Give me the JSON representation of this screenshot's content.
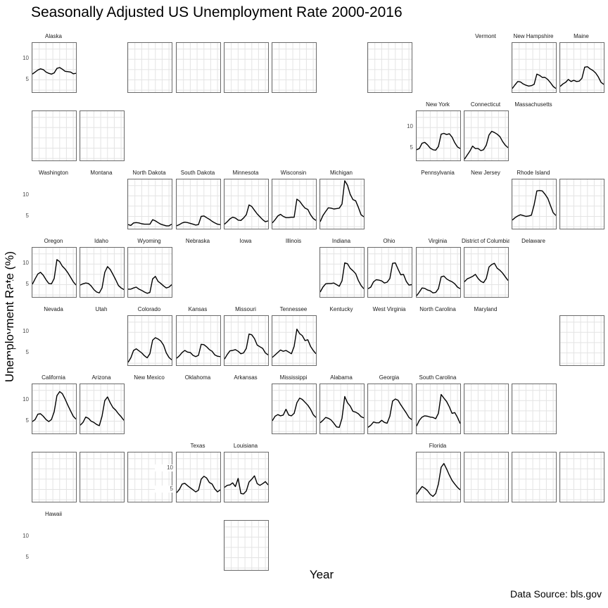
{
  "title": "Seasonally Adjusted US Unemployment Rate 2000-2016",
  "axes": {
    "y_title": "Unemployment Rate (%)",
    "x_title": "Year"
  },
  "footer": {
    "source": "Data Source: bls.gov"
  },
  "colors": {
    "line": "#000000",
    "grid": "#e4e4e4",
    "panel_border": "#6a6a6a",
    "panel_bg": "#ffffff",
    "tick_label": "#4d4d4d",
    "strip_label": "#1a1a1a"
  },
  "chart_data": {
    "type": "line",
    "title": "Seasonally Adjusted US Unemployment Rate 2000-2016",
    "xlabel": "Year",
    "ylabel": "Unemployment Rate (%)",
    "x": [
      2000,
      2001,
      2002,
      2003,
      2004,
      2005,
      2006,
      2007,
      2008,
      2009,
      2010,
      2011,
      2012,
      2013,
      2014,
      2015,
      2016
    ],
    "x_range": [
      2000,
      2016
    ],
    "y_range": [
      2,
      14
    ],
    "x_gridlines": [
      2000,
      2002.5,
      2005,
      2007.5,
      2010,
      2012.5,
      2015
    ],
    "y_gridlines": [
      2.5,
      5,
      7.5,
      10,
      12.5
    ],
    "y_ticks": [
      {
        "label": "10",
        "value": 10
      },
      {
        "label": "5",
        "value": 5
      }
    ],
    "legend": "none",
    "grid_layout": {
      "rows": 8,
      "cols": 12
    },
    "facets": [
      {
        "state": "Alaska",
        "row": 1,
        "col": 1,
        "cell": "data",
        "y_axis": true,
        "values": [
          6.4,
          6.9,
          7.4,
          7.7,
          7.5,
          6.9,
          6.6,
          6.4,
          6.7,
          7.8,
          8.0,
          7.6,
          7.1,
          7.0,
          6.9,
          6.5,
          6.6
        ]
      },
      {
        "row": 1,
        "col": 3,
        "cell": "empty"
      },
      {
        "row": 1,
        "col": 4,
        "cell": "empty"
      },
      {
        "row": 1,
        "col": 5,
        "cell": "empty"
      },
      {
        "row": 1,
        "col": 6,
        "cell": "empty"
      },
      {
        "row": 1,
        "col": 8,
        "cell": "empty"
      },
      {
        "state": "Vermont",
        "row": 1,
        "col": 10,
        "cell": "label"
      },
      {
        "state": "New Hampshire",
        "row": 1,
        "col": 11,
        "cell": "data",
        "values": [
          2.9,
          3.8,
          4.6,
          4.5,
          4.0,
          3.7,
          3.5,
          3.6,
          3.9,
          6.4,
          6.1,
          5.6,
          5.6,
          5.1,
          4.3,
          3.4,
          2.9
        ]
      },
      {
        "state": "Maine",
        "row": 1,
        "col": 12,
        "cell": "data",
        "values": [
          3.4,
          4.0,
          4.4,
          5.1,
          4.6,
          4.9,
          4.6,
          4.7,
          5.4,
          8.1,
          8.2,
          7.7,
          7.3,
          6.7,
          5.7,
          4.4,
          3.9
        ]
      },
      {
        "row": 2,
        "col": 1,
        "cell": "empty"
      },
      {
        "row": 2,
        "col": 2,
        "cell": "empty"
      },
      {
        "state": "New York",
        "row": 2,
        "col": 9,
        "cell": "data",
        "y_axis": true,
        "values": [
          4.6,
          4.9,
          6.2,
          6.4,
          5.8,
          5.0,
          4.6,
          4.5,
          5.4,
          8.4,
          8.6,
          8.3,
          8.5,
          7.7,
          6.3,
          5.3,
          4.9
        ]
      },
      {
        "state": "Connecticut",
        "row": 2,
        "col": 10,
        "cell": "data",
        "values": [
          2.3,
          3.3,
          4.3,
          5.5,
          4.9,
          4.9,
          4.4,
          4.6,
          5.7,
          8.2,
          9.1,
          8.8,
          8.4,
          7.8,
          6.6,
          5.7,
          5.1
        ]
      },
      {
        "state": "Massachusetts",
        "row": 2,
        "col": 11,
        "cell": "label"
      },
      {
        "state": "Washington",
        "row": 3,
        "col": 1,
        "cell": "label",
        "y_axis": true
      },
      {
        "state": "Montana",
        "row": 3,
        "col": 2,
        "cell": "label"
      },
      {
        "state": "North Dakota",
        "row": 3,
        "col": 3,
        "cell": "data",
        "values": [
          3.0,
          2.8,
          3.4,
          3.5,
          3.4,
          3.2,
          3.1,
          3.1,
          3.1,
          4.2,
          3.9,
          3.5,
          3.1,
          2.9,
          2.7,
          2.7,
          3.1
        ]
      },
      {
        "state": "South Dakota",
        "row": 3,
        "col": 4,
        "cell": "data",
        "values": [
          2.7,
          3.0,
          3.4,
          3.6,
          3.5,
          3.3,
          3.1,
          2.9,
          3.0,
          5.0,
          5.1,
          4.7,
          4.3,
          3.8,
          3.4,
          3.1,
          3.0
        ]
      },
      {
        "state": "Minnesota",
        "row": 3,
        "col": 5,
        "cell": "data",
        "values": [
          3.1,
          3.7,
          4.4,
          4.8,
          4.6,
          4.1,
          4.0,
          4.6,
          5.4,
          7.8,
          7.4,
          6.5,
          5.6,
          4.9,
          4.2,
          3.7,
          3.9
        ]
      },
      {
        "state": "Wisconsin",
        "row": 3,
        "col": 6,
        "cell": "data",
        "values": [
          3.4,
          4.2,
          5.1,
          5.5,
          5.0,
          4.7,
          4.7,
          4.8,
          4.8,
          9.2,
          8.7,
          7.8,
          7.0,
          6.7,
          5.4,
          4.5,
          4.0
        ]
      },
      {
        "state": "Michigan",
        "row": 3,
        "col": 7,
        "cell": "data",
        "values": [
          3.7,
          5.2,
          6.2,
          7.1,
          7.0,
          6.8,
          6.9,
          7.0,
          8.0,
          13.7,
          12.6,
          10.4,
          9.1,
          8.8,
          7.2,
          5.4,
          4.9
        ]
      },
      {
        "state": "Pennsylvania",
        "row": 3,
        "col": 9,
        "cell": "label"
      },
      {
        "state": "New Jersey",
        "row": 3,
        "col": 10,
        "cell": "label"
      },
      {
        "state": "Rhode Island",
        "row": 3,
        "col": 11,
        "cell": "data",
        "values": [
          4.1,
          4.7,
          5.1,
          5.4,
          5.2,
          5.0,
          5.1,
          5.3,
          7.8,
          11.2,
          11.3,
          11.2,
          10.4,
          9.4,
          7.6,
          5.9,
          5.2
        ]
      },
      {
        "row": 3,
        "col": 12,
        "cell": "empty"
      },
      {
        "state": "Oregon",
        "row": 4,
        "col": 1,
        "cell": "data",
        "y_axis": true,
        "values": [
          5.1,
          6.4,
          7.6,
          8.0,
          7.3,
          6.2,
          5.3,
          5.2,
          6.5,
          11.1,
          10.6,
          9.5,
          8.8,
          7.9,
          6.8,
          5.7,
          4.9
        ]
      },
      {
        "state": "Idaho",
        "row": 4,
        "col": 2,
        "cell": "data",
        "values": [
          4.9,
          5.2,
          5.4,
          5.3,
          4.7,
          3.8,
          3.2,
          3.0,
          4.2,
          8.0,
          9.4,
          8.7,
          7.5,
          6.2,
          4.8,
          4.2,
          3.8
        ]
      },
      {
        "state": "Wyoming",
        "row": 4,
        "col": 3,
        "cell": "data",
        "values": [
          3.9,
          3.9,
          4.2,
          4.4,
          3.9,
          3.6,
          3.2,
          2.9,
          3.1,
          6.4,
          7.0,
          5.8,
          5.3,
          4.7,
          4.2,
          4.4,
          5.0
        ]
      },
      {
        "state": "Nebraska",
        "row": 4,
        "col": 4,
        "cell": "label"
      },
      {
        "state": "Iowa",
        "row": 4,
        "col": 5,
        "cell": "label"
      },
      {
        "state": "Illinois",
        "row": 4,
        "col": 6,
        "cell": "label"
      },
      {
        "state": "Indiana",
        "row": 4,
        "col": 7,
        "cell": "data",
        "values": [
          3.2,
          4.4,
          5.2,
          5.3,
          5.3,
          5.4,
          5.0,
          4.6,
          5.9,
          10.3,
          10.1,
          9.0,
          8.4,
          7.7,
          6.0,
          4.8,
          4.0
        ]
      },
      {
        "state": "Ohio",
        "row": 4,
        "col": 8,
        "cell": "data",
        "values": [
          4.0,
          4.4,
          5.7,
          6.2,
          6.1,
          5.9,
          5.4,
          5.6,
          6.5,
          10.2,
          10.3,
          8.8,
          7.4,
          7.5,
          5.8,
          4.9,
          5.0
        ]
      },
      {
        "state": "Virginia",
        "row": 4,
        "col": 9,
        "cell": "data",
        "values": [
          2.3,
          3.2,
          4.2,
          4.1,
          3.7,
          3.5,
          3.0,
          3.1,
          4.0,
          6.9,
          7.1,
          6.4,
          6.0,
          5.7,
          5.2,
          4.4,
          4.0
        ]
      },
      {
        "state": "District of Columbia",
        "row": 4,
        "col": 10,
        "cell": "data",
        "values": [
          5.7,
          6.4,
          6.7,
          7.0,
          7.5,
          6.5,
          5.8,
          5.5,
          6.5,
          9.3,
          9.9,
          10.2,
          9.0,
          8.5,
          7.8,
          6.9,
          6.0
        ]
      },
      {
        "state": "Delaware",
        "row": 4,
        "col": 11,
        "cell": "label"
      },
      {
        "state": "Nevada",
        "row": 5,
        "col": 1,
        "cell": "label",
        "y_axis": true
      },
      {
        "state": "Utah",
        "row": 5,
        "col": 2,
        "cell": "label"
      },
      {
        "state": "Colorado",
        "row": 5,
        "col": 3,
        "cell": "data",
        "values": [
          2.7,
          3.8,
          5.6,
          6.0,
          5.5,
          5.0,
          4.3,
          3.8,
          4.8,
          8.1,
          8.7,
          8.4,
          7.9,
          6.9,
          5.0,
          3.9,
          3.3
        ]
      },
      {
        "state": "Kansas",
        "row": 5,
        "col": 4,
        "cell": "data",
        "values": [
          3.7,
          4.3,
          5.1,
          5.6,
          5.2,
          5.1,
          4.4,
          4.1,
          4.4,
          7.1,
          7.0,
          6.5,
          5.8,
          5.4,
          4.5,
          4.2,
          4.1
        ]
      },
      {
        "state": "Missouri",
        "row": 5,
        "col": 5,
        "cell": "data",
        "values": [
          3.5,
          4.6,
          5.5,
          5.6,
          5.8,
          5.4,
          4.8,
          5.0,
          6.1,
          9.6,
          9.4,
          8.5,
          6.9,
          6.5,
          6.1,
          5.0,
          4.5
        ]
      },
      {
        "state": "Tennessee",
        "row": 5,
        "col": 6,
        "cell": "data",
        "values": [
          3.9,
          4.5,
          5.1,
          5.7,
          5.4,
          5.6,
          5.2,
          4.8,
          6.6,
          10.8,
          9.7,
          9.2,
          8.0,
          8.2,
          6.6,
          5.6,
          4.8
        ]
      },
      {
        "state": "Kentucky",
        "row": 5,
        "col": 7,
        "cell": "label"
      },
      {
        "state": "West Virginia",
        "row": 5,
        "col": 8,
        "cell": "label"
      },
      {
        "state": "North Carolina",
        "row": 5,
        "col": 9,
        "cell": "label"
      },
      {
        "state": "Maryland",
        "row": 5,
        "col": 10,
        "cell": "label"
      },
      {
        "row": 5,
        "col": 12,
        "cell": "empty"
      },
      {
        "state": "California",
        "row": 6,
        "col": 1,
        "cell": "data",
        "y_axis": true,
        "values": [
          4.9,
          5.4,
          6.7,
          6.8,
          6.2,
          5.4,
          4.9,
          5.4,
          7.3,
          11.2,
          12.2,
          11.7,
          10.4,
          8.9,
          7.5,
          6.2,
          5.5
        ]
      },
      {
        "state": "Arizona",
        "row": 6,
        "col": 2,
        "cell": "data",
        "values": [
          4.0,
          4.7,
          6.0,
          5.7,
          5.0,
          4.7,
          4.2,
          3.9,
          6.2,
          10.0,
          10.9,
          9.5,
          8.3,
          7.7,
          6.8,
          6.1,
          5.2
        ]
      },
      {
        "state": "New Mexico",
        "row": 6,
        "col": 3,
        "cell": "label"
      },
      {
        "state": "Oklahoma",
        "row": 6,
        "col": 4,
        "cell": "label"
      },
      {
        "state": "Arkansas",
        "row": 6,
        "col": 5,
        "cell": "label"
      },
      {
        "state": "Mississippi",
        "row": 6,
        "col": 6,
        "cell": "data",
        "values": [
          5.1,
          6.2,
          6.6,
          6.3,
          6.5,
          7.9,
          6.5,
          6.3,
          6.9,
          9.5,
          10.6,
          10.3,
          9.6,
          8.9,
          7.9,
          6.6,
          5.9
        ]
      },
      {
        "state": "Alabama",
        "row": 6,
        "col": 7,
        "cell": "data",
        "values": [
          4.6,
          5.2,
          5.9,
          5.7,
          5.3,
          4.5,
          3.6,
          3.5,
          5.7,
          11.0,
          9.5,
          8.7,
          7.4,
          7.2,
          6.8,
          6.1,
          5.8
        ]
      },
      {
        "state": "Georgia",
        "row": 6,
        "col": 8,
        "cell": "data",
        "values": [
          3.5,
          4.0,
          4.8,
          4.6,
          4.6,
          5.2,
          4.7,
          4.5,
          6.2,
          9.9,
          10.4,
          10.1,
          9.0,
          8.0,
          7.0,
          5.9,
          5.4
        ]
      },
      {
        "state": "South Carolina",
        "row": 6,
        "col": 9,
        "cell": "data",
        "values": [
          3.8,
          5.2,
          6.0,
          6.3,
          6.2,
          6.0,
          5.9,
          5.6,
          6.9,
          11.5,
          10.6,
          9.8,
          8.5,
          6.9,
          7.1,
          5.9,
          4.4
        ]
      },
      {
        "row": 6,
        "col": 10,
        "cell": "empty"
      },
      {
        "row": 6,
        "col": 11,
        "cell": "empty"
      },
      {
        "row": 7,
        "col": 1,
        "cell": "empty"
      },
      {
        "row": 7,
        "col": 2,
        "cell": "empty"
      },
      {
        "row": 7,
        "col": 3,
        "cell": "empty"
      },
      {
        "state": "Texas",
        "row": 7,
        "col": 4,
        "cell": "data",
        "y_axis": true,
        "values": [
          4.2,
          5.0,
          6.3,
          6.5,
          5.9,
          5.4,
          4.9,
          4.4,
          4.8,
          7.5,
          8.2,
          7.8,
          6.7,
          6.3,
          5.1,
          4.4,
          4.9
        ]
      },
      {
        "state": "Louisiana",
        "row": 7,
        "col": 5,
        "cell": "data",
        "values": [
          5.5,
          6.0,
          6.1,
          6.6,
          5.7,
          7.7,
          4.0,
          3.9,
          4.6,
          6.8,
          7.5,
          8.3,
          6.4,
          6.0,
          6.4,
          6.9,
          6.1
        ]
      },
      {
        "state": "Florida",
        "row": 7,
        "col": 9,
        "cell": "data",
        "values": [
          3.8,
          4.8,
          5.7,
          5.3,
          4.7,
          3.8,
          3.3,
          4.0,
          6.3,
          10.4,
          11.3,
          10.0,
          8.5,
          7.2,
          6.3,
          5.5,
          4.9
        ]
      },
      {
        "row": 7,
        "col": 10,
        "cell": "empty"
      },
      {
        "row": 7,
        "col": 11,
        "cell": "empty"
      },
      {
        "row": 7,
        "col": 12,
        "cell": "empty"
      },
      {
        "state": "Hawaii",
        "row": 8,
        "col": 1,
        "cell": "label",
        "y_axis": true
      },
      {
        "row": 8,
        "col": 5,
        "cell": "empty"
      }
    ]
  }
}
